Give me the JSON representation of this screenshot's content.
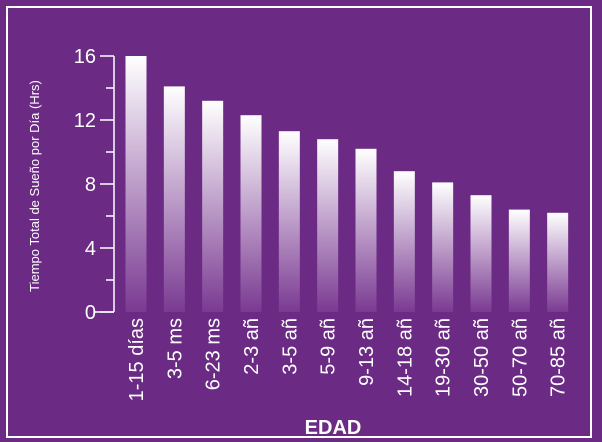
{
  "chart_data": {
    "type": "bar",
    "categories": [
      "1-15 días",
      "3-5 ms",
      "6-23 ms",
      "2-3 añ",
      "3-5 añ",
      "5-9 añ",
      "9-13 añ",
      "14-18 añ",
      "19-30 añ",
      "30-50 añ",
      "50-70 añ",
      "70-85 añ"
    ],
    "values": [
      16,
      14.1,
      13.2,
      12.3,
      11.3,
      10.8,
      10.2,
      8.8,
      8.1,
      7.3,
      6.4,
      6.2
    ],
    "title": "",
    "xlabel": "EDAD",
    "ylabel": "Tiempo Total de Sueño por Día (Hrs)",
    "ylim": [
      0,
      16
    ],
    "yticks": [
      0,
      4,
      8,
      12,
      16
    ],
    "grid": false,
    "colors": {
      "background": "#6b2a84",
      "bar_top": "#ffffff",
      "bar_bottom": "#7a3a92",
      "axis": "#ffffff"
    }
  }
}
